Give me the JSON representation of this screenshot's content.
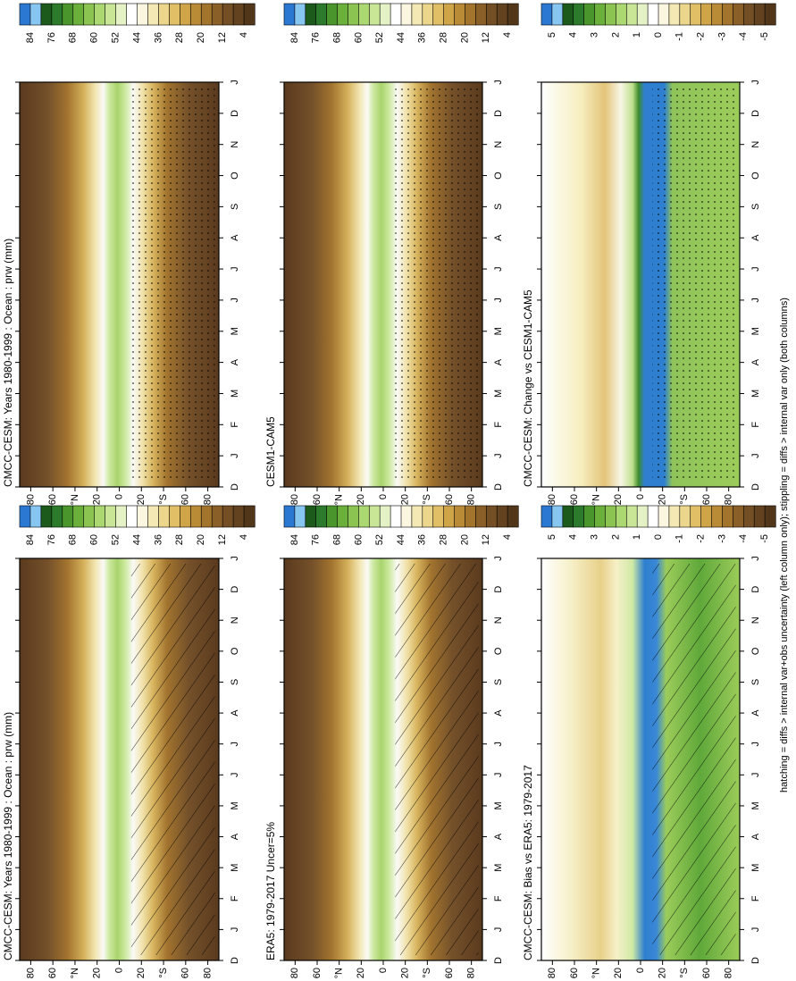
{
  "panels": [
    {
      "title": "CMCC-CESM: Years 1980-1999 : Ocean : prw (mm)",
      "colorbar": [
        84,
        76,
        68,
        60,
        52,
        44,
        36,
        28,
        20,
        12,
        4
      ]
    },
    {
      "title": "CMCC-CESM: Years 1980-1999 : Ocean : prw (mm)",
      "colorbar": [
        84,
        76,
        68,
        60,
        52,
        44,
        36,
        28,
        20,
        12,
        4
      ]
    },
    {
      "title": "ERA5: 1979-2017 Uncer=5%",
      "colorbar": [
        84,
        76,
        68,
        60,
        52,
        44,
        36,
        28,
        20,
        12,
        4
      ]
    },
    {
      "title": "CESM1-CAM5",
      "colorbar": [
        84,
        76,
        68,
        60,
        52,
        44,
        36,
        28,
        20,
        12,
        4
      ]
    },
    {
      "title": "CMCC-CESM: Bias vs ERA5: 1979-2017",
      "colorbar": [
        5,
        4,
        3,
        2,
        1,
        0,
        -1,
        -2,
        -3,
        -4,
        -5
      ]
    },
    {
      "title": "CMCC-CESM: Change vs CESM1-CAM5",
      "colorbar": [
        5,
        4,
        3,
        2,
        1,
        0,
        -1,
        -2,
        -3,
        -4,
        -5
      ]
    }
  ],
  "months": [
    "D",
    "J",
    "F",
    "M",
    "A",
    "M",
    "J",
    "J",
    "A",
    "S",
    "O",
    "N",
    "D",
    "J"
  ],
  "lat_ticks": [
    "80",
    "60",
    "°N",
    "20",
    "0",
    "20",
    "°S",
    "60",
    "80"
  ],
  "footnote": "hatching = diffs > internal var+obs uncertainty (left column only); stippling = diffs > internal var only (both columns)"
}
